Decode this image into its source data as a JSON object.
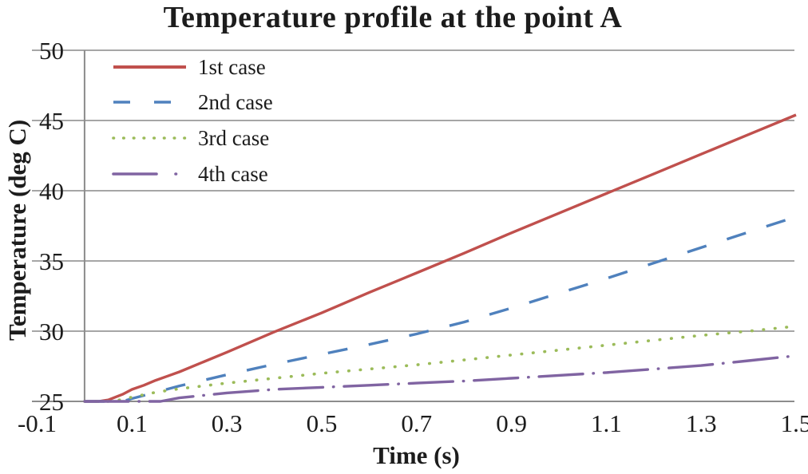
{
  "chart_data": {
    "type": "line",
    "title": "Temperature profile at the point A",
    "xlabel": "Time (s)",
    "ylabel": "Temperature (deg C)",
    "xlim": [
      -0.1,
      1.5
    ],
    "ylim": [
      25,
      50
    ],
    "x_ticks": [
      -0.1,
      0.1,
      0.3,
      0.5,
      0.7,
      0.9,
      1.1,
      1.3,
      1.5
    ],
    "x_tick_labels": [
      "-0.1",
      "0.1",
      "0.3",
      "0.5",
      "0.7",
      "0.9",
      "1.1",
      "1.3",
      "1.5"
    ],
    "y_ticks": [
      25,
      30,
      35,
      40,
      45,
      50
    ],
    "y_tick_labels": [
      "25",
      "30",
      "35",
      "40",
      "45",
      "50"
    ],
    "grid": "horizontal-only",
    "legend_position": "top-left-inside",
    "series": [
      {
        "name": "1st case",
        "color": "#C0504D",
        "style": "solid",
        "points": [
          [
            0,
            25
          ],
          [
            0.03,
            25
          ],
          [
            0.05,
            25.1
          ],
          [
            0.08,
            25.5
          ],
          [
            0.1,
            25.85
          ],
          [
            0.125,
            26.15
          ],
          [
            0.15,
            26.5
          ],
          [
            0.175,
            26.8
          ],
          [
            0.2,
            27.1
          ],
          [
            0.3,
            28.5
          ],
          [
            0.4,
            29.95
          ],
          [
            0.5,
            31.3
          ],
          [
            0.6,
            32.75
          ],
          [
            0.7,
            34.15
          ],
          [
            0.8,
            35.55
          ],
          [
            0.9,
            37.0
          ],
          [
            1.0,
            38.4
          ],
          [
            1.1,
            39.8
          ],
          [
            1.2,
            41.2
          ],
          [
            1.3,
            42.6
          ],
          [
            1.4,
            44.0
          ],
          [
            1.5,
            45.4
          ]
        ]
      },
      {
        "name": "2nd case",
        "color": "#4F81BD",
        "style": "dashed",
        "points": [
          [
            0,
            25
          ],
          [
            0.08,
            25
          ],
          [
            0.1,
            25.2
          ],
          [
            0.15,
            25.65
          ],
          [
            0.2,
            26.1
          ],
          [
            0.3,
            26.9
          ],
          [
            0.4,
            27.65
          ],
          [
            0.5,
            28.35
          ],
          [
            0.6,
            29.05
          ],
          [
            0.7,
            29.8
          ],
          [
            0.8,
            30.65
          ],
          [
            0.9,
            31.65
          ],
          [
            1.0,
            32.7
          ],
          [
            1.1,
            33.75
          ],
          [
            1.2,
            34.85
          ],
          [
            1.3,
            35.95
          ],
          [
            1.4,
            37.05
          ],
          [
            1.5,
            38.15
          ]
        ]
      },
      {
        "name": "3rd case",
        "color": "#9BBB59",
        "style": "dotted",
        "points": [
          [
            0,
            25
          ],
          [
            0.06,
            25
          ],
          [
            0.1,
            25.3
          ],
          [
            0.15,
            25.65
          ],
          [
            0.2,
            25.9
          ],
          [
            0.3,
            26.3
          ],
          [
            0.4,
            26.65
          ],
          [
            0.5,
            27.0
          ],
          [
            0.6,
            27.3
          ],
          [
            0.7,
            27.6
          ],
          [
            0.8,
            27.95
          ],
          [
            0.9,
            28.3
          ],
          [
            1.0,
            28.65
          ],
          [
            1.1,
            29.0
          ],
          [
            1.2,
            29.35
          ],
          [
            1.3,
            29.7
          ],
          [
            1.4,
            30.0
          ],
          [
            1.5,
            30.35
          ]
        ]
      },
      {
        "name": "4th case",
        "color": "#8064A2",
        "style": "dash-dot",
        "points": [
          [
            0,
            25
          ],
          [
            0.16,
            25
          ],
          [
            0.2,
            25.25
          ],
          [
            0.3,
            25.6
          ],
          [
            0.4,
            25.85
          ],
          [
            0.5,
            26.0
          ],
          [
            0.6,
            26.15
          ],
          [
            0.7,
            26.3
          ],
          [
            0.8,
            26.45
          ],
          [
            0.9,
            26.65
          ],
          [
            1.0,
            26.85
          ],
          [
            1.1,
            27.05
          ],
          [
            1.2,
            27.3
          ],
          [
            1.3,
            27.55
          ],
          [
            1.4,
            27.9
          ],
          [
            1.5,
            28.25
          ]
        ]
      }
    ]
  },
  "colors": {
    "gridline": "#A6A6A6",
    "axis": "#8C8C8C",
    "text": "#1c1c1c",
    "background": "#ffffff"
  }
}
